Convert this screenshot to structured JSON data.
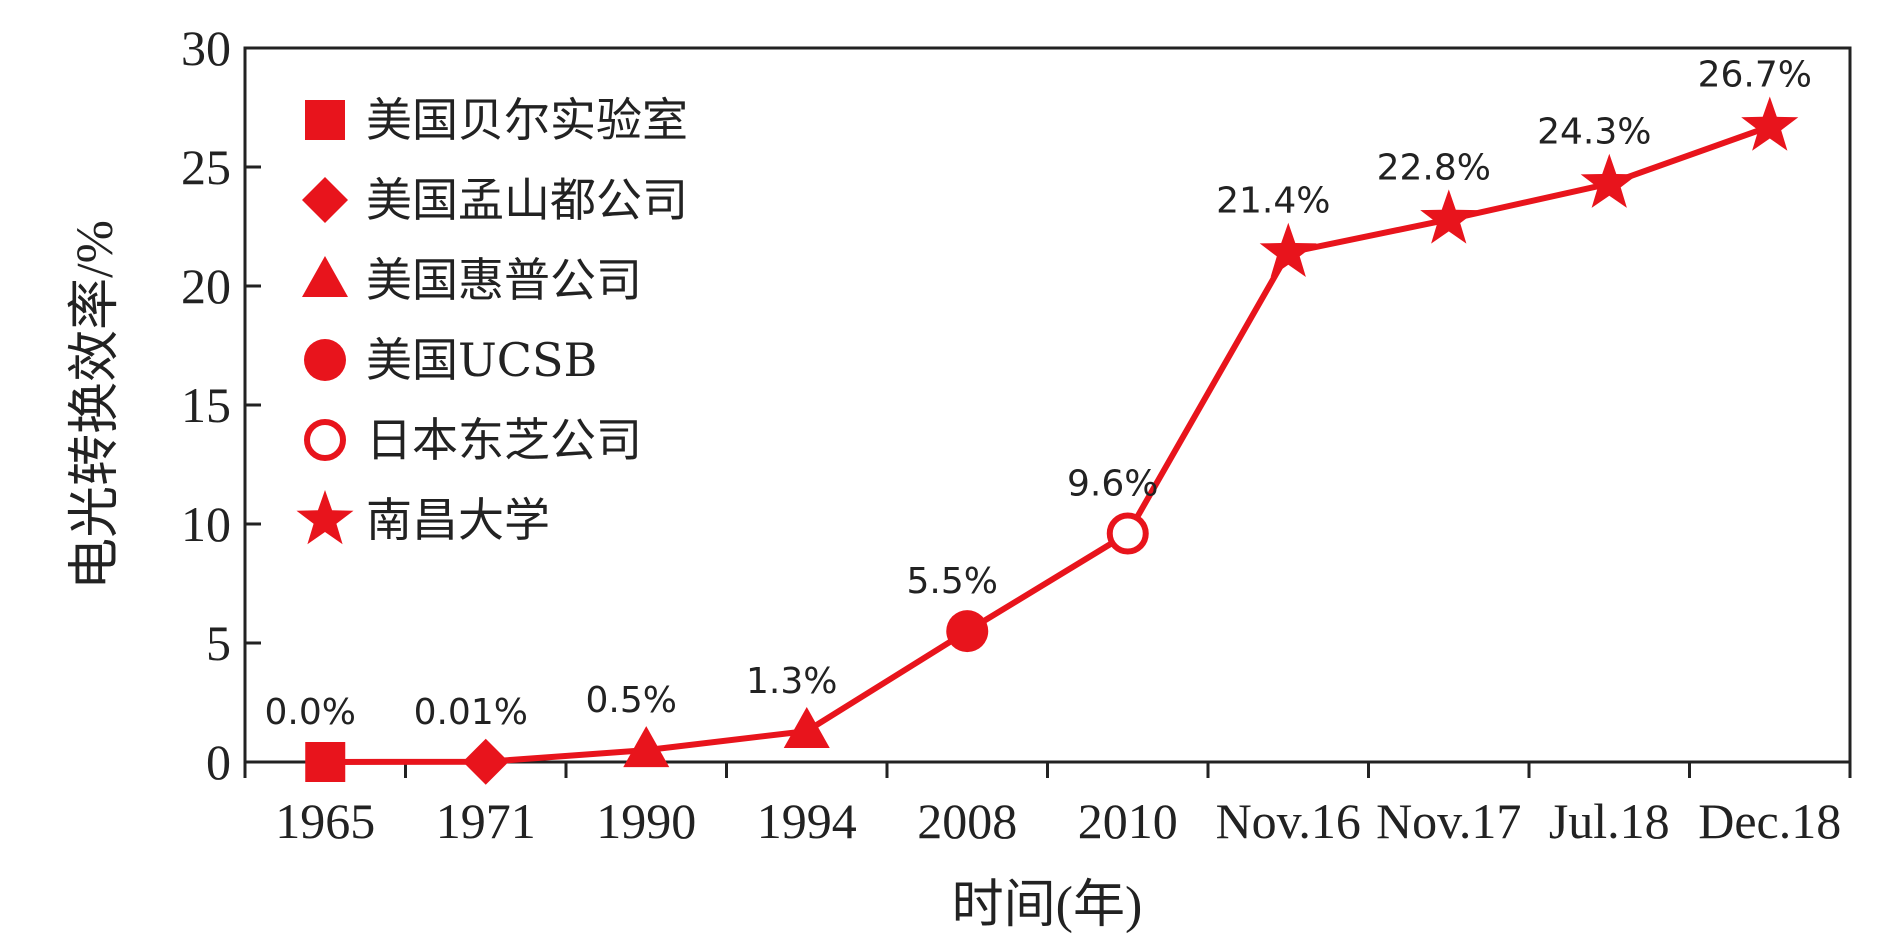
{
  "chart_data": {
    "type": "line",
    "categories": [
      "1965",
      "1971",
      "1990",
      "1994",
      "2008",
      "2010",
      "Nov.16",
      "Nov.17",
      "Jul.18",
      "Dec.18"
    ],
    "values": [
      0.0,
      0.01,
      0.5,
      1.3,
      5.5,
      9.6,
      21.4,
      22.8,
      24.3,
      26.7
    ],
    "data_labels": [
      "0.0%",
      "0.01%",
      "0.5%",
      "1.3%",
      "5.5%",
      "9.6%",
      "21.4%",
      "22.8%",
      "24.3%",
      "26.7%"
    ],
    "markers": [
      "square",
      "diamond",
      "triangle",
      "triangle",
      "circle",
      "circle-open",
      "star",
      "star",
      "star",
      "star"
    ],
    "xlabel": "时间(年)",
    "ylabel": "电光转换效率/%",
    "ylim": [
      0,
      30
    ],
    "yticks": [
      "0",
      "5",
      "10",
      "15",
      "20",
      "25",
      "30"
    ],
    "grid": false,
    "color": "#e8141c",
    "legend": {
      "position": "top-left",
      "entries": [
        {
          "marker": "square",
          "label": "美国贝尔实验室"
        },
        {
          "marker": "diamond",
          "label": "美国孟山都公司"
        },
        {
          "marker": "triangle",
          "label": "美国惠普公司"
        },
        {
          "marker": "circle",
          "label": "美国UCSB"
        },
        {
          "marker": "circle-open",
          "label": "日本东芝公司"
        },
        {
          "marker": "star",
          "label": "南昌大学"
        }
      ]
    }
  }
}
